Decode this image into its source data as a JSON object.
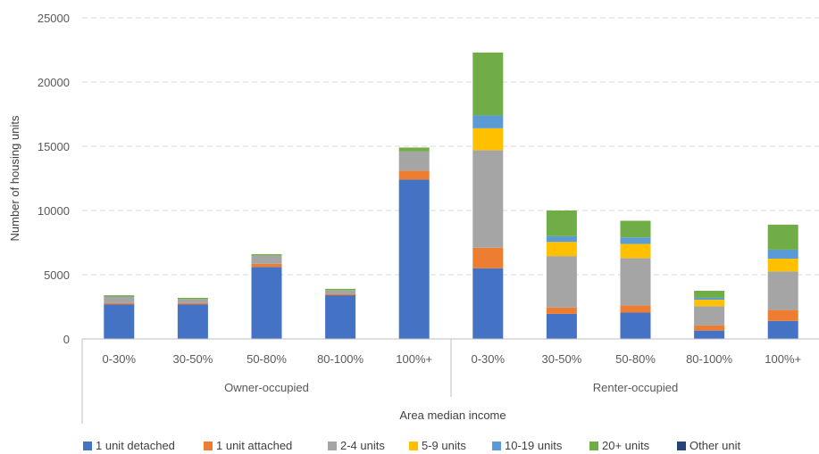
{
  "chart_data": {
    "type": "bar",
    "stacked": true,
    "title": "",
    "xlabel": "Area median income",
    "ylabel": "Number of housing units",
    "ylim": [
      0,
      25000
    ],
    "yticks": [
      0,
      5000,
      10000,
      15000,
      20000,
      25000
    ],
    "grid": true,
    "legend_position": "bottom",
    "groups": [
      {
        "label": "Owner-occupied",
        "categories": [
          "0-30%",
          "30-50%",
          "50-80%",
          "80-100%",
          "100%+"
        ]
      },
      {
        "label": "Renter-occupied",
        "categories": [
          "0-30%",
          "30-50%",
          "50-80%",
          "80-100%",
          "100%+"
        ]
      }
    ],
    "categories": [
      "0-30%",
      "30-50%",
      "50-80%",
      "80-100%",
      "100%+",
      "0-30%",
      "30-50%",
      "50-80%",
      "80-100%",
      "100%+"
    ],
    "series": [
      {
        "name": "1 unit detached",
        "color": "#4472C4",
        "values": [
          2700,
          2700,
          5600,
          3400,
          12400,
          5500,
          1950,
          2050,
          650,
          1400
        ]
      },
      {
        "name": "1 unit attached",
        "color": "#ED7D31",
        "values": [
          100,
          100,
          250,
          100,
          700,
          1600,
          500,
          550,
          400,
          850
        ]
      },
      {
        "name": "2-4 units",
        "color": "#A5A5A5",
        "values": [
          500,
          300,
          650,
          300,
          1500,
          7600,
          4000,
          3700,
          1500,
          3000
        ]
      },
      {
        "name": "5-9 units",
        "color": "#FFC000",
        "values": [
          0,
          0,
          0,
          0,
          0,
          1700,
          1100,
          1100,
          500,
          1000
        ]
      },
      {
        "name": "10-19 units",
        "color": "#5B9BD5",
        "values": [
          0,
          0,
          0,
          0,
          0,
          1000,
          450,
          500,
          150,
          700
        ]
      },
      {
        "name": "20+ units",
        "color": "#70AD47",
        "values": [
          100,
          100,
          100,
          100,
          300,
          4900,
          2000,
          1300,
          550,
          1950
        ]
      },
      {
        "name": "Other unit",
        "color": "#264478",
        "values": [
          0,
          0,
          0,
          0,
          0,
          0,
          0,
          0,
          0,
          0
        ]
      }
    ]
  }
}
